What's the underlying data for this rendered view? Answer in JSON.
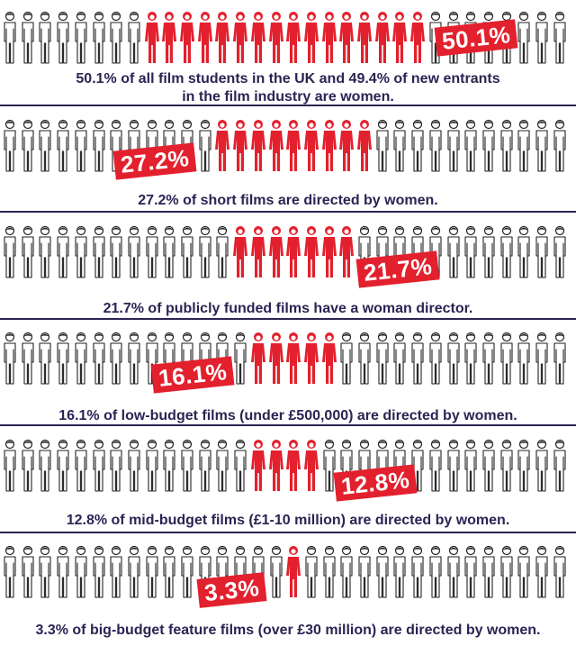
{
  "chart_data": {
    "type": "pictogram",
    "figures_per_row": 32,
    "colors": {
      "women": "#e3202d",
      "men": "#222222",
      "accent": "#e3202d",
      "text": "#2b2453"
    },
    "rows": [
      {
        "label": "50.1%",
        "value": 50.1,
        "caption": "50.1% of all film students in the UK and 49.4% of new entrants in the film industry are women.",
        "red_count": 16
      },
      {
        "label": "27.2%",
        "value": 27.2,
        "caption": "27.2% of short films are directed by women.",
        "red_count": 9
      },
      {
        "label": "21.7%",
        "value": 21.7,
        "caption": "21.7% of publicly funded films have a woman director.",
        "red_count": 7
      },
      {
        "label": "16.1%",
        "value": 16.1,
        "caption": "16.1% of low-budget films (under £500,000) are directed by women.",
        "red_count": 5
      },
      {
        "label": "12.8%",
        "value": 12.8,
        "caption": "12.8% of mid-budget films (£1-10 million) are directed by women.",
        "red_count": 4
      },
      {
        "label": "3.3%",
        "value": 3.3,
        "caption": "3.3% of big-budget feature films (over £30 million) are directed by women.",
        "red_count": 1
      }
    ]
  }
}
